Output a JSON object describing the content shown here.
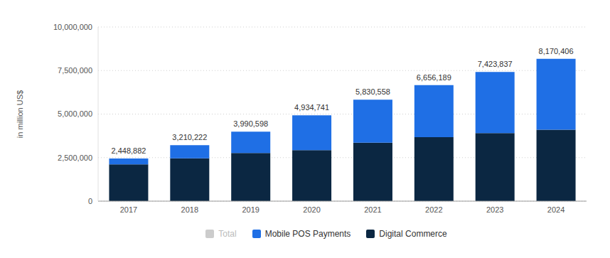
{
  "chart_data": {
    "type": "bar",
    "stacked": true,
    "grid": true,
    "legend": "bottom",
    "y_label": "in million US$",
    "categories": [
      "2017",
      "2018",
      "2019",
      "2020",
      "2021",
      "2022",
      "2023",
      "2024"
    ],
    "ylim": [
      0,
      10000000
    ],
    "yticks": [
      0,
      {
        "value": 2500000,
        "label": "2,500,000"
      },
      {
        "value": 5000000,
        "label": "5,000,000"
      },
      {
        "value": 7500000,
        "label": "7,500,000"
      },
      {
        "value": 10000000,
        "label": "10,000,000"
      }
    ],
    "series": [
      {
        "name": "Total",
        "type": "line",
        "line_style": "none",
        "color": "#cccccc",
        "data_labels": true,
        "values": [
          2448882,
          3210222,
          3990598,
          4934741,
          5830558,
          6656189,
          7423837,
          8170406
        ],
        "value_labels": [
          "2,448,882",
          "3,210,222",
          "3,990,598",
          "4,934,741",
          "5,830,558",
          "6,656,189",
          "7,423,837",
          "8,170,406"
        ]
      },
      {
        "name": "Mobile POS Payments",
        "type": "bar",
        "color": "#1f6fe5",
        "values": [
          340000,
          750000,
          1220000,
          2000000,
          2470000,
          2990000,
          3510000,
          4070000
        ]
      },
      {
        "name": "Digital Commerce",
        "type": "bar",
        "color": "#0b2742",
        "values": [
          2110000,
          2460000,
          2770000,
          2930000,
          3360000,
          3670000,
          3910000,
          4100000
        ]
      }
    ]
  }
}
